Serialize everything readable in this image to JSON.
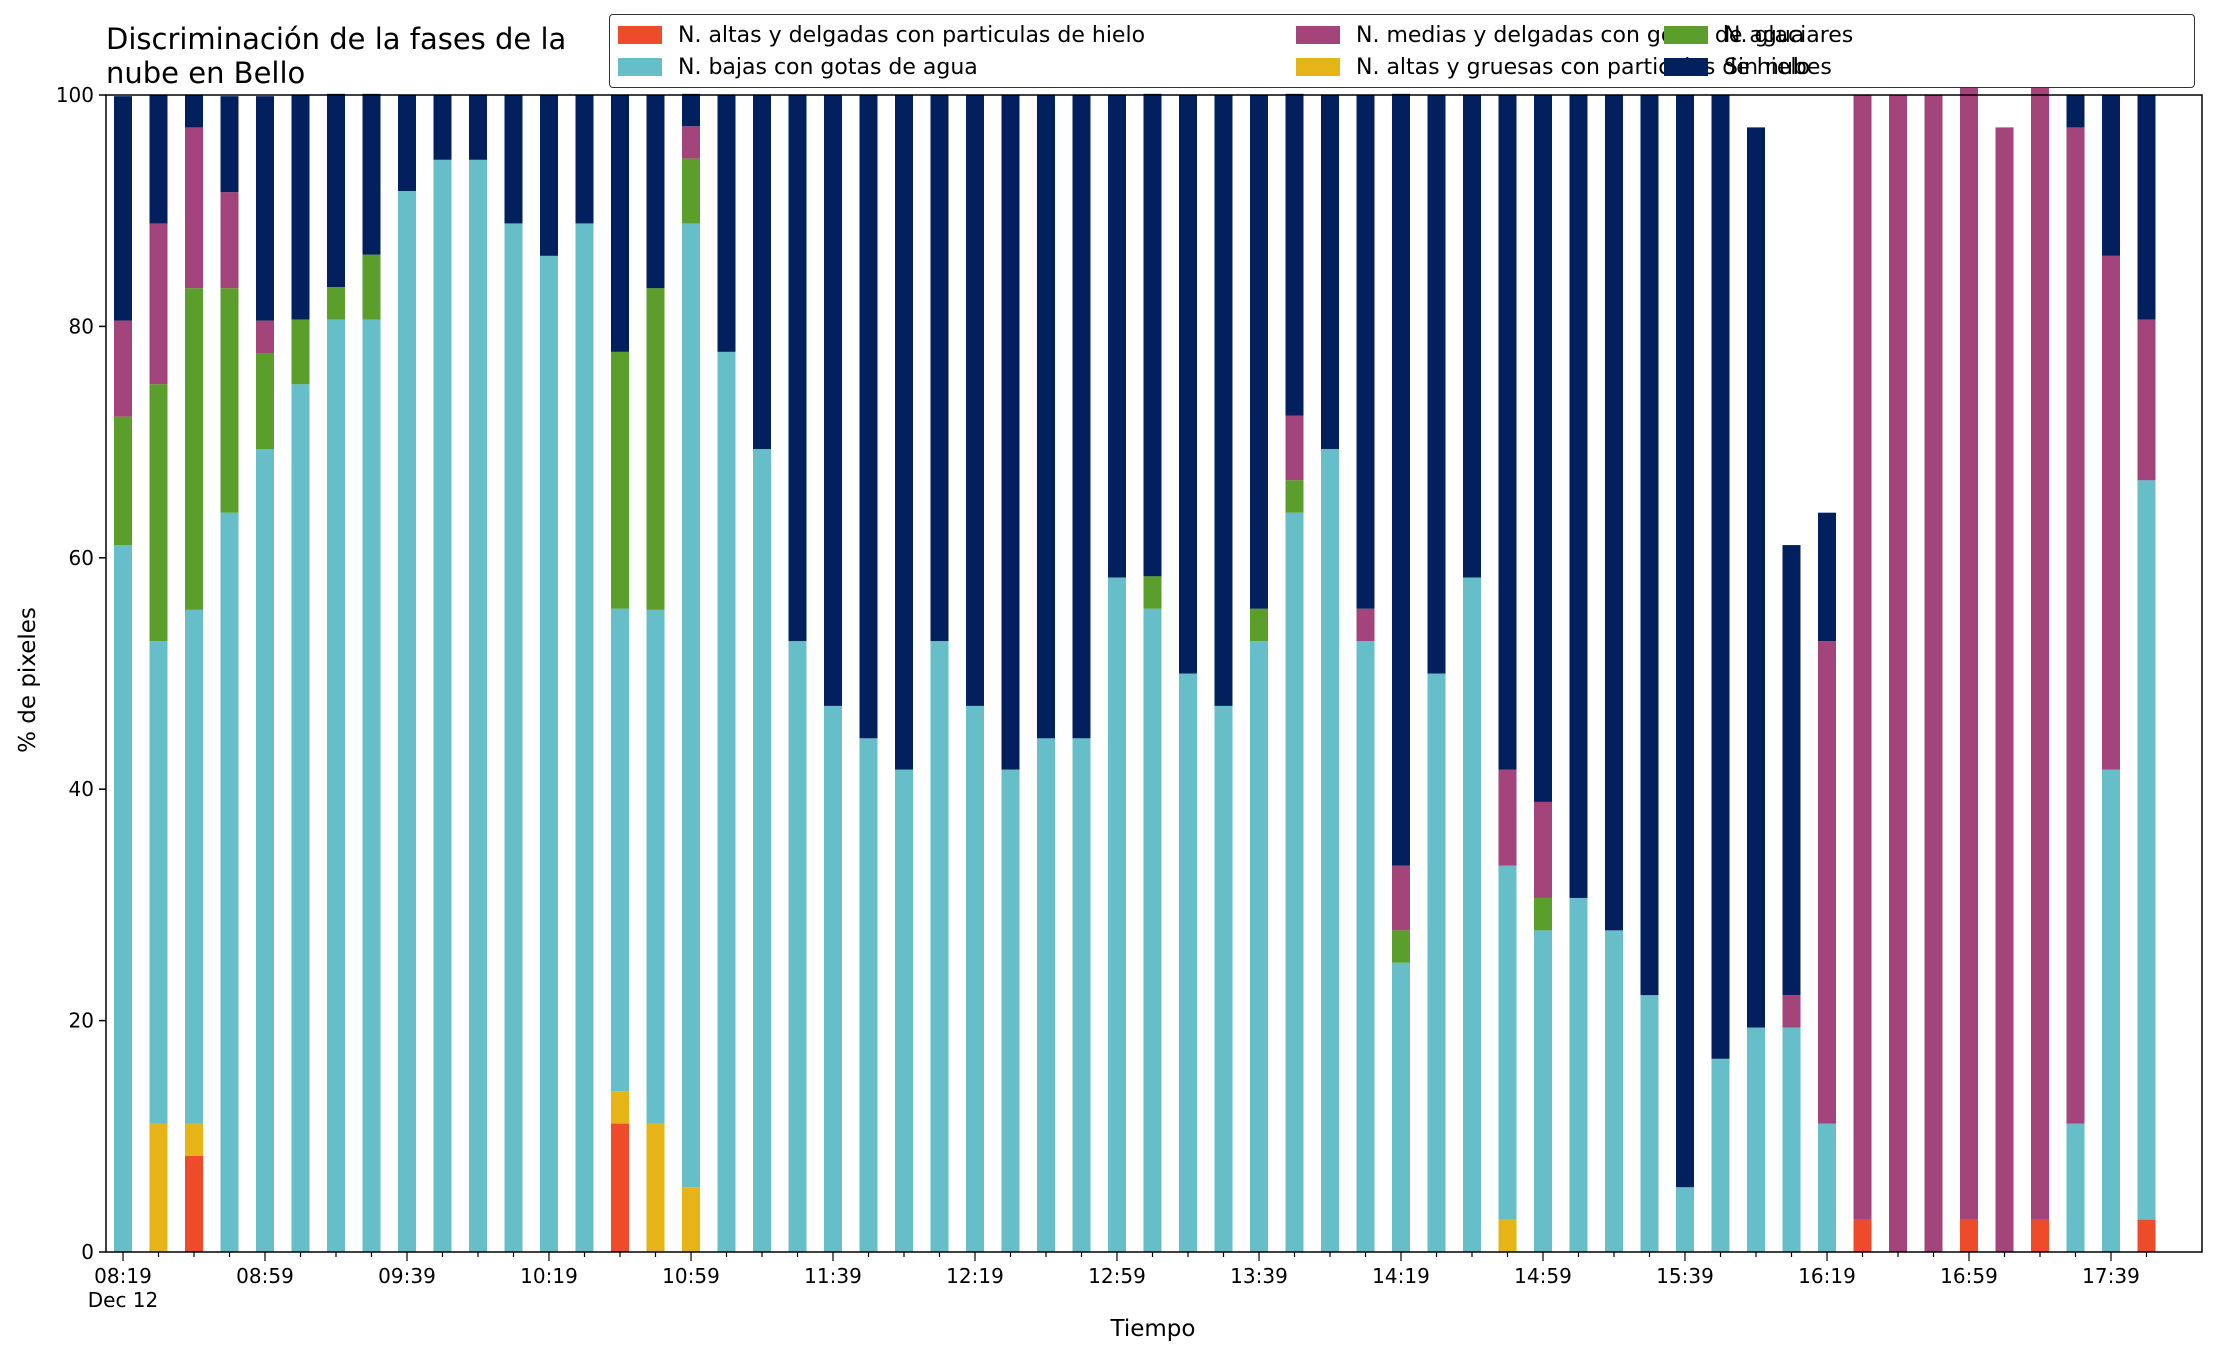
{
  "chart_data": {
    "type": "bar",
    "stacked": true,
    "title": "Discriminación de la fases de la nube en Bello",
    "xlabel": "Tiempo",
    "ylabel": "% de pixeles",
    "ylim": [
      0,
      100
    ],
    "yticks": [
      0,
      20,
      40,
      60,
      80,
      100
    ],
    "grid": false,
    "legend_position": "top-right",
    "categories": [
      "08:19",
      "08:29",
      "08:39",
      "08:49",
      "08:59",
      "09:09",
      "09:19",
      "09:29",
      "09:39",
      "09:49",
      "09:59",
      "10:09",
      "10:19",
      "10:29",
      "10:39",
      "10:49",
      "10:59",
      "11:09",
      "11:19",
      "11:29",
      "11:39",
      "11:49",
      "11:59",
      "12:09",
      "12:19",
      "12:29",
      "12:39",
      "12:49",
      "12:59",
      "13:09",
      "13:19",
      "13:29",
      "13:39",
      "13:49",
      "13:59",
      "14:09",
      "14:19",
      "14:29",
      "14:39",
      "14:49",
      "14:59",
      "15:09",
      "15:19",
      "15:29",
      "15:39",
      "15:49",
      "15:59",
      "16:09",
      "16:19",
      "16:29",
      "16:39",
      "16:49",
      "16:59",
      "17:09",
      "17:19",
      "17:29",
      "17:39",
      "17:49"
    ],
    "xtick_labels": [
      "08:19",
      "08:59",
      "09:39",
      "10:19",
      "10:59",
      "11:39",
      "12:19",
      "12:59",
      "13:39",
      "14:19",
      "14:59",
      "15:39",
      "16:19",
      "16:59",
      "17:39"
    ],
    "date_label": "Dec 12",
    "series": [
      {
        "name": "N. altas y delgadas con particulas de hielo",
        "color": "#ee4b2b",
        "values": [
          0,
          0,
          8.3,
          0,
          0,
          0,
          0,
          0,
          0,
          0,
          0,
          0,
          0,
          0,
          11.1,
          0,
          0,
          0,
          0,
          0,
          0,
          0,
          0,
          0,
          0,
          0,
          0,
          0,
          0,
          0,
          0,
          0,
          0,
          0,
          0,
          0,
          0,
          0,
          0,
          0,
          0,
          0,
          0,
          0,
          0,
          0,
          0,
          0,
          0,
          2.8,
          0,
          0,
          2.8,
          0,
          2.8,
          0,
          0,
          2.8
        ]
      },
      {
        "name": "N. altas y gruesas con particulas de hielo",
        "color": "#e6b416",
        "values": [
          0,
          11.1,
          2.8,
          0,
          0,
          0,
          0,
          0,
          0,
          0,
          0,
          0,
          0,
          0,
          2.8,
          11.1,
          5.6,
          0,
          0,
          0,
          0,
          0,
          0,
          0,
          0,
          0,
          0,
          0,
          0,
          0,
          0,
          0,
          0,
          0,
          0,
          0,
          0,
          0,
          0,
          2.8,
          0,
          0,
          0,
          0,
          0,
          0,
          0,
          0,
          0,
          0,
          0,
          0,
          0,
          0,
          0,
          0,
          0,
          0
        ]
      },
      {
        "name": "N. bajas con gotas de agua",
        "color": "#66bec9",
        "values": [
          61.1,
          41.7,
          44.4,
          63.9,
          69.4,
          75,
          80.6,
          80.6,
          91.7,
          94.4,
          94.4,
          88.9,
          86.1,
          88.9,
          41.7,
          44.4,
          83.3,
          77.8,
          69.4,
          52.8,
          47.2,
          44.4,
          41.7,
          52.8,
          47.2,
          41.7,
          44.4,
          44.4,
          58.3,
          55.6,
          50,
          47.2,
          52.8,
          63.9,
          69.4,
          52.8,
          25,
          50,
          58.3,
          30.6,
          27.8,
          30.6,
          27.8,
          22.2,
          5.6,
          16.7,
          19.4,
          19.4,
          11.1,
          0,
          0,
          0,
          0,
          0,
          0,
          11.1,
          41.7,
          63.9
        ]
      },
      {
        "name": "N. glaciares",
        "color": "#5b9e2c",
        "values": [
          11.1,
          22.2,
          27.8,
          19.4,
          8.3,
          5.6,
          2.8,
          5.6,
          0,
          0,
          0,
          0,
          0,
          0,
          22.2,
          27.8,
          5.6,
          0,
          0,
          0,
          0,
          0,
          0,
          0,
          0,
          0,
          0,
          0,
          0,
          2.8,
          0,
          0,
          2.8,
          2.8,
          0,
          0,
          2.8,
          0,
          0,
          0,
          2.8,
          0,
          0,
          0,
          0,
          0,
          0,
          0,
          0,
          0,
          0,
          0,
          0,
          0,
          0,
          0,
          0,
          0
        ]
      },
      {
        "name": "N. medias y delgadas con gotas de agua",
        "color": "#a3447a",
        "values": [
          8.3,
          13.9,
          13.9,
          8.3,
          2.8,
          0,
          0,
          0,
          0,
          0,
          0,
          0,
          0,
          0,
          0,
          0,
          2.8,
          0,
          0,
          0,
          0,
          0,
          0,
          0,
          0,
          0,
          0,
          0,
          0,
          0,
          0,
          0,
          0,
          5.6,
          0,
          2.8,
          5.6,
          0,
          0,
          8.3,
          8.3,
          0,
          0,
          0,
          0,
          0,
          0,
          2.8,
          41.7,
          97.2,
          100,
          100,
          100,
          97.2,
          100,
          86.1,
          44.4,
          13.9
        ]
      },
      {
        "name": "Sin nubes",
        "color": "#03205e",
        "values": [
          19.4,
          11.1,
          2.8,
          8.3,
          19.4,
          19.4,
          16.7,
          13.9,
          8.3,
          5.6,
          5.6,
          11.1,
          13.9,
          11.1,
          22.2,
          16.7,
          2.8,
          22.2,
          30.6,
          47.2,
          52.8,
          55.6,
          58.3,
          47.2,
          52.8,
          58.3,
          55.6,
          55.6,
          41.7,
          41.7,
          50,
          52.8,
          44.4,
          27.8,
          30.6,
          44.4,
          66.7,
          50,
          41.7,
          58.3,
          61.1,
          69.4,
          72.2,
          77.8,
          94.4,
          83.3,
          77.8,
          38.9,
          11.1,
          0,
          0,
          0,
          0,
          0,
          0,
          2.8,
          13.9,
          19.4
        ]
      }
    ]
  },
  "legend_order": [
    0,
    2,
    4,
    1,
    3,
    5
  ]
}
